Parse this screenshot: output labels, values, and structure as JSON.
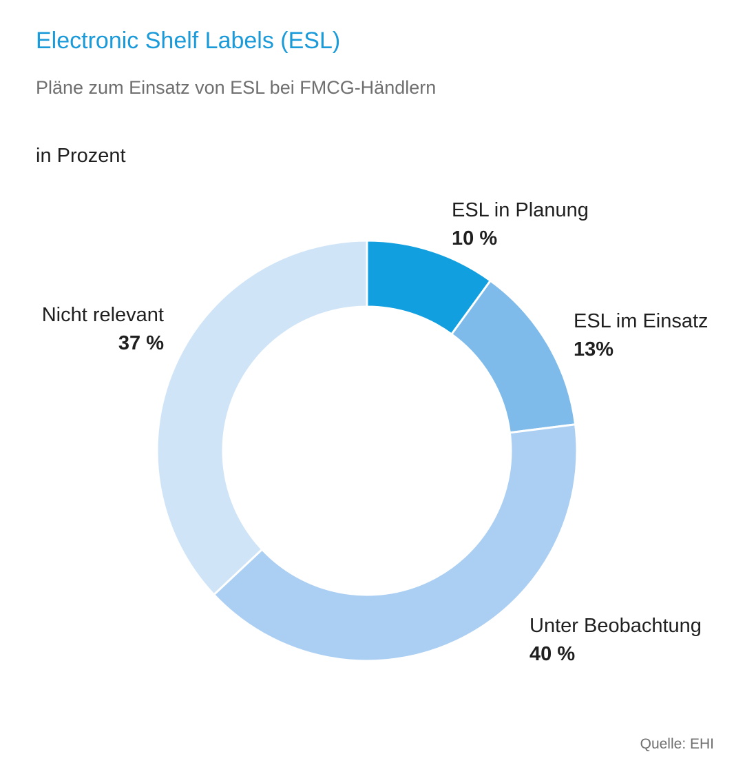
{
  "header": {
    "title": "Electronic Shelf Labels (ESL)",
    "subtitle": "Pläne zum Einsatz von ESL bei FMCG-Händlern",
    "unit": "in Prozent"
  },
  "footer": {
    "source": "Quelle: EHI"
  },
  "chart_data": {
    "type": "pie",
    "style": "donut",
    "title": "Electronic Shelf Labels (ESL)",
    "subtitle": "Pläne zum Einsatz von ESL bei FMCG-Händlern",
    "unit": "in Prozent",
    "slices": [
      {
        "label": "ESL in Planung",
        "value": 10,
        "display": "10 %",
        "color": "#119fdf"
      },
      {
        "label": "ESL im Einsatz",
        "value": 13,
        "display": "13%",
        "color": "#7fbbea"
      },
      {
        "label": "Unter Beobachtung",
        "value": 40,
        "display": "40 %",
        "color": "#abcff3"
      },
      {
        "label": "Nicht relevant",
        "value": 37,
        "display": "37 %",
        "color": "#d0e4f8"
      }
    ]
  }
}
